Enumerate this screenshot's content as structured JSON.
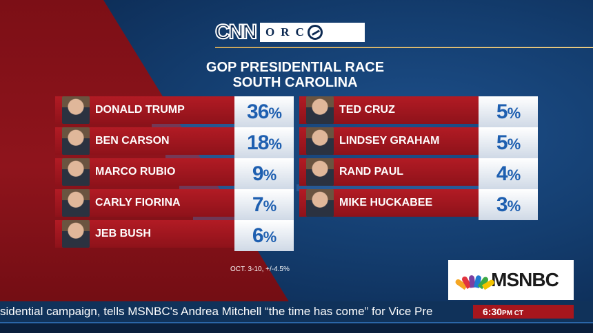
{
  "header": {
    "network_logo": "CNN",
    "partner_logo": "ORC"
  },
  "title": {
    "line1": "GOP PRESIDENTIAL RACE",
    "line2": "SOUTH CAROLINA"
  },
  "candidates_left": [
    {
      "name": "DONALD TRUMP",
      "value": "36",
      "unit": "%"
    },
    {
      "name": "BEN CARSON",
      "value": "18",
      "unit": "%"
    },
    {
      "name": "MARCO RUBIO",
      "value": "9",
      "unit": "%"
    },
    {
      "name": "CARLY FIORINA",
      "value": "7",
      "unit": "%"
    },
    {
      "name": "JEB BUSH",
      "value": "6",
      "unit": "%"
    }
  ],
  "candidates_right": [
    {
      "name": "TED CRUZ",
      "value": "5",
      "unit": "%"
    },
    {
      "name": "LINDSEY GRAHAM",
      "value": "5",
      "unit": "%"
    },
    {
      "name": "RAND PAUL",
      "value": "4",
      "unit": "%"
    },
    {
      "name": "MIKE HUCKABEE",
      "value": "3",
      "unit": "%"
    }
  ],
  "footnote": "OCT. 3-10, +/-4.5%",
  "channel_logo": "MSNBC",
  "ticker": {
    "text": "sidential campaign, tells MSNBC's Andrea Mitchell “the time has come” for Vice Pre",
    "time": "6:30",
    "time_suffix": "PM CT"
  },
  "colors": {
    "accent_red": "#8e121a",
    "accent_blue": "#1e5fb0",
    "gold_rule": "#c9a55a"
  }
}
